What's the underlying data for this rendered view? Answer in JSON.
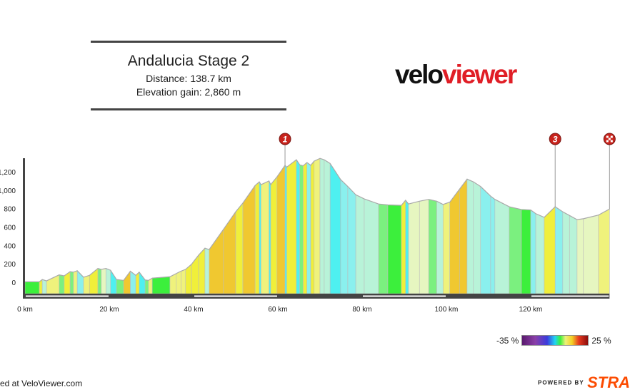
{
  "title": {
    "name": "Andalucia Stage 2",
    "distance": "Distance: 138.7 km",
    "elevation": "Elevation gain: 2,860 m"
  },
  "logo": {
    "part1": "velo",
    "part2": "viewer"
  },
  "footer": {
    "left": "ed at VeloViewer.com",
    "powered": "POWERED BY",
    "brand": "STRA"
  },
  "legend": {
    "min": "-35 %",
    "max": "25 %"
  },
  "chart_data": {
    "type": "area",
    "xlabel": "",
    "ylabel": "",
    "xlim": [
      0,
      138.7
    ],
    "ylim": [
      -120,
      1400
    ],
    "x_ticks": [
      0,
      20,
      40,
      60,
      80,
      100,
      120
    ],
    "x_tick_labels": [
      "0 km",
      "20 km",
      "40 km",
      "60 km",
      "80 km",
      "100 km",
      "120 km"
    ],
    "y_ticks": [
      0,
      200,
      400,
      600,
      800,
      1000,
      1200
    ],
    "y_tick_labels": [
      "0",
      "200",
      "400",
      "600",
      "800",
      "1,000",
      "1,200"
    ],
    "fill": "colored by gradient (green flat, yellow climbing, cyan descending)",
    "markers": [
      {
        "label": "1",
        "km": 61.7,
        "color": "#c8231c"
      },
      {
        "label": "3",
        "km": 125.8,
        "color": "#c8231c"
      },
      {
        "label": "finish",
        "km": 138.7,
        "color": "#c8231c"
      }
    ],
    "profile": [
      [
        0,
        5
      ],
      [
        3.4,
        5
      ],
      [
        4.1,
        30
      ],
      [
        5.1,
        15
      ],
      [
        8.1,
        80
      ],
      [
        9.3,
        70
      ],
      [
        10.7,
        115
      ],
      [
        11.5,
        110
      ],
      [
        12.4,
        125
      ],
      [
        13.9,
        55
      ],
      [
        15.3,
        75
      ],
      [
        17.3,
        150
      ],
      [
        18.1,
        140
      ],
      [
        19.2,
        150
      ],
      [
        20.3,
        130
      ],
      [
        21.7,
        30
      ],
      [
        23.4,
        20
      ],
      [
        25,
        120
      ],
      [
        26.3,
        75
      ],
      [
        27.1,
        110
      ],
      [
        28.5,
        25
      ],
      [
        29.3,
        20
      ],
      [
        30.2,
        45
      ],
      [
        34.4,
        60
      ],
      [
        35.9,
        95
      ],
      [
        37,
        120
      ],
      [
        38.1,
        140
      ],
      [
        39.5,
        195
      ],
      [
        41.2,
        295
      ],
      [
        42.7,
        370
      ],
      [
        43.7,
        355
      ],
      [
        47.1,
        575
      ],
      [
        50,
        765
      ],
      [
        51.7,
        860
      ],
      [
        54.6,
        1050
      ],
      [
        55.6,
        1090
      ],
      [
        56,
        1060
      ],
      [
        57.9,
        1100
      ],
      [
        58.3,
        1060
      ],
      [
        59.8,
        1145
      ],
      [
        61.7,
        1270
      ],
      [
        62.1,
        1250
      ],
      [
        64.4,
        1330
      ],
      [
        65.2,
        1275
      ],
      [
        66,
        1265
      ],
      [
        66.9,
        1300
      ],
      [
        67.8,
        1270
      ],
      [
        68.6,
        1315
      ],
      [
        70,
        1345
      ],
      [
        71,
        1330
      ],
      [
        72.4,
        1290
      ],
      [
        74.9,
        1115
      ],
      [
        76.6,
        1040
      ],
      [
        78.5,
        950
      ],
      [
        80.5,
        905
      ],
      [
        83.9,
        850
      ],
      [
        86.1,
        840
      ],
      [
        89.3,
        835
      ],
      [
        90.3,
        890
      ],
      [
        91,
        850
      ],
      [
        93.6,
        880
      ],
      [
        95.8,
        900
      ],
      [
        97.7,
        880
      ],
      [
        99.2,
        845
      ],
      [
        100.8,
        870
      ],
      [
        103.1,
        1010
      ],
      [
        104.9,
        1120
      ],
      [
        106.4,
        1090
      ],
      [
        108.1,
        1040
      ],
      [
        110.5,
        935
      ],
      [
        111.5,
        900
      ],
      [
        114.9,
        820
      ],
      [
        117.8,
        790
      ],
      [
        120,
        785
      ],
      [
        121.2,
        745
      ],
      [
        123.2,
        705
      ],
      [
        125.8,
        820
      ],
      [
        127.6,
        765
      ],
      [
        129.2,
        725
      ],
      [
        131,
        680
      ],
      [
        132.5,
        690
      ],
      [
        136.1,
        730
      ],
      [
        138.7,
        795
      ]
    ]
  }
}
